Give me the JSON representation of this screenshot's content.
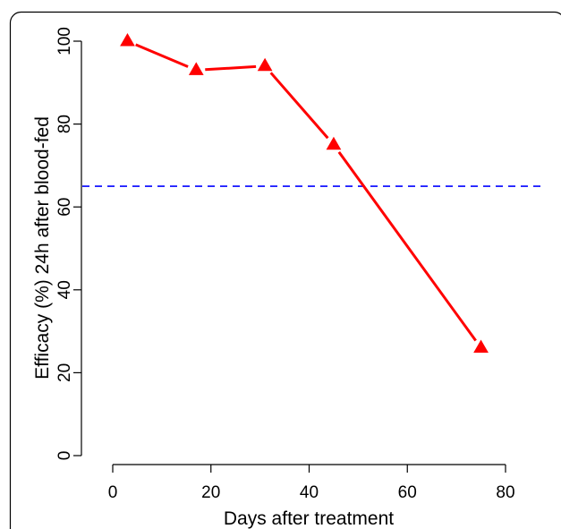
{
  "chart_data": {
    "type": "line",
    "title": "",
    "xlabel": "Days after treatment",
    "ylabel": "Efficacy (%) 24h after blood-fed",
    "xlim": [
      0,
      80
    ],
    "ylim": [
      0,
      100
    ],
    "x_ticks": [
      "0",
      "20",
      "40",
      "60",
      "80"
    ],
    "y_ticks": [
      "0",
      "20",
      "40",
      "60",
      "80",
      "100"
    ],
    "grid": false,
    "legend": "none",
    "series": [
      {
        "x": [
          3,
          17,
          31,
          45,
          75
        ],
        "y": [
          100,
          93,
          94,
          75,
          26
        ],
        "color": "#ff0000",
        "marker": "triangle",
        "line_style": "solid"
      }
    ],
    "reference_lines": [
      {
        "orientation": "horizontal",
        "y": 65,
        "color": "#0000ff",
        "line_style": "dashed"
      }
    ]
  }
}
